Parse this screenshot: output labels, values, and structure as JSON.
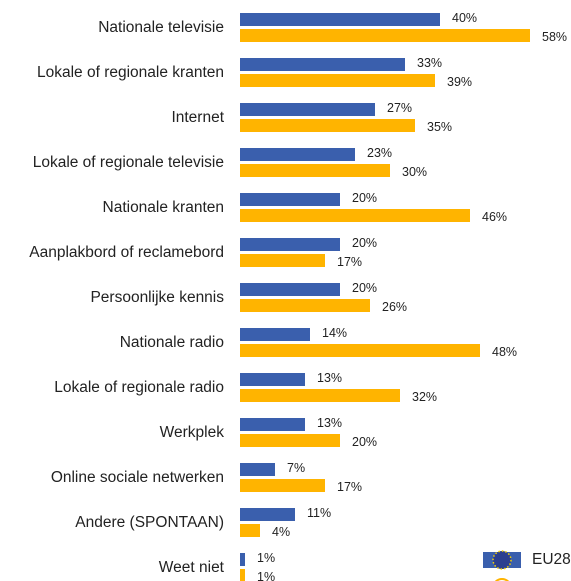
{
  "chart_data": {
    "type": "bar",
    "orientation": "horizontal",
    "categories": [
      "Nationale televisie",
      "Lokale of regionale kranten",
      "Internet",
      "Lokale of regionale televisie",
      "Nationale kranten",
      "Aanplakbord of reclamebord",
      "Persoonlijke kennis",
      "Nationale radio",
      "Lokale of regionale radio",
      "Werkplek",
      "Online sociale netwerken",
      "Andere (SPONTAAN)",
      "Weet niet"
    ],
    "series": [
      {
        "name": "EU28",
        "color": "#3a5fad",
        "values": [
          40,
          33,
          27,
          23,
          20,
          20,
          20,
          14,
          13,
          13,
          7,
          11,
          1
        ],
        "value_labels": [
          "40%",
          "33%",
          "27%",
          "23%",
          "20%",
          "20%",
          "20%",
          "14%",
          "13%",
          "13%",
          "7%",
          "11%",
          "1%"
        ]
      },
      {
        "color": "#ffb400",
        "values": [
          58,
          39,
          35,
          30,
          46,
          17,
          26,
          48,
          32,
          20,
          17,
          4,
          1
        ],
        "value_labels": [
          "58%",
          "39%",
          "35%",
          "30%",
          "46%",
          "17%",
          "26%",
          "48%",
          "32%",
          "20%",
          "17%",
          "4%",
          "1%"
        ]
      }
    ],
    "legend": "bottom-right"
  }
}
